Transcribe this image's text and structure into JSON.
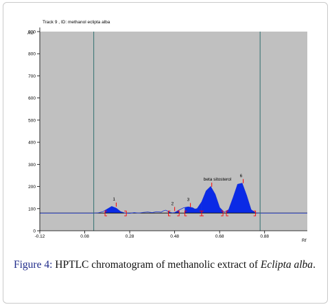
{
  "chart_data": {
    "type": "line",
    "title": "Track  9 , ID: methanol eclipta alba",
    "ylabel": "AU",
    "xlabel": "Rf",
    "xlim": [
      -0.12,
      1.07
    ],
    "ylim": [
      0,
      900
    ],
    "xticks": [
      "-0.12",
      "0.08",
      "0.28",
      "0.48",
      "0.68",
      "0.88"
    ],
    "xtick_values": [
      -0.12,
      0.08,
      0.28,
      0.48,
      0.68,
      0.88
    ],
    "yticks": [
      "0",
      "100",
      "200",
      "300",
      "400",
      "500",
      "600",
      "700",
      "800",
      "900"
    ],
    "ytick_values": [
      0,
      100,
      200,
      300,
      400,
      500,
      600,
      700,
      800,
      900
    ],
    "grid": false,
    "baseline": 80,
    "front_lines": [
      0.12,
      0.86
    ],
    "series": [
      {
        "x": [
          -0.12,
          0.0,
          0.1,
          0.12,
          0.14,
          0.16,
          0.18,
          0.2,
          0.22,
          0.24,
          0.26,
          0.28,
          0.3,
          0.32,
          0.34,
          0.36,
          0.38,
          0.4,
          0.42,
          0.43,
          0.44,
          0.45,
          0.46,
          0.47,
          0.48,
          0.5,
          0.52,
          0.54,
          0.56,
          0.57,
          0.58,
          0.6,
          0.62,
          0.64,
          0.66,
          0.68,
          0.7,
          0.72,
          0.74,
          0.76,
          0.78,
          0.8,
          0.82,
          0.84,
          0.86,
          0.9,
          1.0,
          1.07
        ],
        "y": [
          80,
          80,
          80,
          80,
          81,
          86,
          98,
          110,
          102,
          86,
          80,
          79,
          82,
          80,
          83,
          85,
          82,
          86,
          84,
          90,
          93,
          88,
          83,
          81,
          82,
          94,
          104,
          108,
          104,
          98,
          100,
          130,
          180,
          200,
          165,
          105,
          84,
          95,
          150,
          210,
          215,
          160,
          95,
          81,
          80,
          80,
          80,
          80
        ]
      }
    ],
    "peaks": [
      {
        "label": "1",
        "rf": 0.22,
        "value": 112
      },
      {
        "label": "2",
        "rf": 0.48,
        "value": 92
      },
      {
        "label": "3",
        "rf": 0.55,
        "value": 110
      },
      {
        "label": "beta sitosterol",
        "rf": 0.645,
        "value": 202
      },
      {
        "label": "6",
        "rf": 0.785,
        "value": 218
      }
    ],
    "integration_brackets": [
      [
        0.17,
        0.265
      ],
      [
        0.452,
        0.5
      ],
      [
        0.525,
        0.6
      ],
      [
        0.6,
        0.695
      ],
      [
        0.71,
        0.84
      ]
    ]
  },
  "caption": {
    "label": "Figure 4:",
    "text": " HPTLC chromatogram of methanolic extract of ",
    "italic": "Eclipta alba",
    "end": "."
  },
  "colors": {
    "plot_bg": "#c0c0c0",
    "fill": "#0a2ae6",
    "line": "#1530d8",
    "baseline": "#000000",
    "front": "#2f6f6f",
    "marker": "#ff0000",
    "caption_label": "#1f2b8a"
  }
}
